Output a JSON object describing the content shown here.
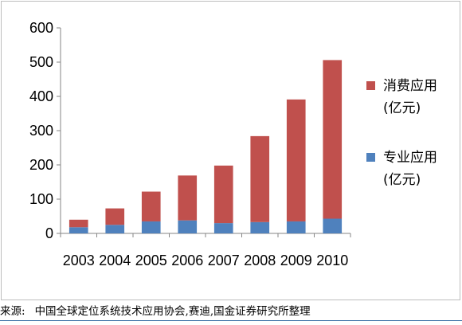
{
  "chart_data": {
    "type": "bar",
    "stacked": true,
    "categories": [
      "2003",
      "2004",
      "2005",
      "2006",
      "2007",
      "2008",
      "2009",
      "2010"
    ],
    "series": [
      {
        "name": "专业应用\n(亿元)",
        "color": "#4f81bd",
        "values": [
          18,
          25,
          35,
          38,
          30,
          33,
          35,
          43
        ]
      },
      {
        "name": "消费应用\n(亿元)",
        "color": "#c0504d",
        "values": [
          22,
          48,
          87,
          131,
          168,
          251,
          356,
          463
        ]
      }
    ],
    "title": "",
    "xlabel": "",
    "ylabel": "",
    "ylim": [
      0,
      600
    ],
    "yticks": [
      0,
      100,
      200,
      300,
      400,
      500,
      600
    ],
    "grid": false,
    "legend_position": "right",
    "legend": [
      {
        "line1": "消费应用",
        "line2": "(亿元)",
        "color": "#c0504d"
      },
      {
        "line1": "专业应用",
        "line2": "(亿元)",
        "color": "#4f81bd"
      }
    ]
  },
  "source": {
    "label": "来源:",
    "text": "中国全球定位系统技术应用协会,赛迪,国金证券研究所整理"
  }
}
